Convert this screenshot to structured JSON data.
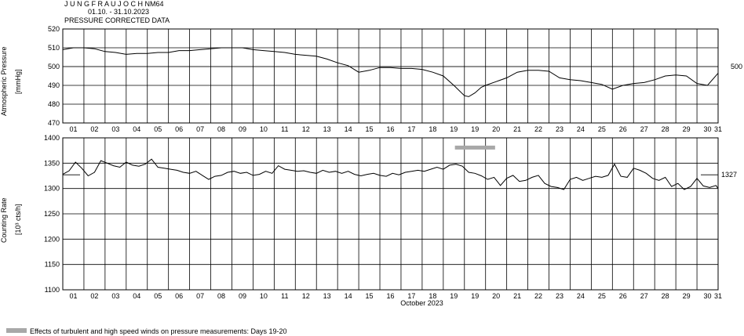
{
  "header": {
    "station": "J U N G F R A U J O C H  NM64",
    "period": "01.10. - 31.10.2023",
    "subtitle": "PRESSURE CORRECTED DATA"
  },
  "footnote": {
    "text": "Effects of turbulent and high speed winds on pressure measurements: Days 19-20",
    "swatch_color": "#a8a8a8"
  },
  "chart_data": [
    {
      "id": "pressure",
      "type": "line",
      "ylabel": "Atmospheric Pressure",
      "yunit": "[mmHg]",
      "ylim": [
        470,
        520
      ],
      "yticks": [
        470,
        480,
        490,
        500,
        510,
        520
      ],
      "ytick_labels": [
        "470",
        "480",
        "490",
        "500",
        "510",
        "520"
      ],
      "reference_value": 500,
      "reference_label": "500",
      "xlim": [
        0,
        31
      ],
      "xtick_labels": [
        "01",
        "02",
        "03",
        "04",
        "05",
        "06",
        "07",
        "08",
        "09",
        "10",
        "11",
        "12",
        "13",
        "14",
        "15",
        "16",
        "17",
        "18",
        "19",
        "19",
        "20",
        "21",
        "22",
        "23",
        "24",
        "25",
        "26",
        "27",
        "28",
        "29",
        "30",
        "31"
      ],
      "grid": true,
      "series": [
        {
          "x": [
            0,
            0.5,
            1,
            1.5,
            2,
            2.5,
            3,
            3.5,
            4,
            4.5,
            5,
            5.5,
            6,
            6.5,
            7,
            7.5,
            8,
            8.5,
            9,
            9.5,
            10,
            10.5,
            11,
            11.5,
            12,
            12.5,
            13,
            13.5,
            14,
            14.5,
            15,
            15.5,
            16,
            16.5,
            17,
            17.5,
            18,
            18.5,
            19,
            19.2,
            19.5,
            19.8,
            20,
            20.5,
            21,
            21.5,
            22,
            22.5,
            23,
            23.5,
            24,
            24.5,
            25,
            25.5,
            26,
            26.5,
            27,
            27.5,
            28,
            28.5,
            29,
            29.5,
            30,
            30.5,
            31
          ],
          "y": [
            509,
            510,
            510,
            509.5,
            508,
            507.5,
            506.5,
            507,
            507,
            507.5,
            507.5,
            508.5,
            508.5,
            509,
            509.5,
            510,
            510,
            510,
            509,
            508.5,
            508,
            507.5,
            506.5,
            506,
            505.5,
            504,
            502,
            500.5,
            497,
            498,
            499.5,
            499.5,
            499,
            499,
            498.5,
            497,
            495,
            490,
            484.5,
            484,
            486,
            489,
            490,
            492,
            494,
            497,
            498,
            498,
            497.5,
            494,
            493,
            492.5,
            491.5,
            490.5,
            488,
            490,
            491,
            491.5,
            493,
            495,
            495.5,
            495,
            491,
            490,
            496.5
          ]
        }
      ]
    },
    {
      "id": "counting",
      "type": "line",
      "ylabel": "Counting Rate",
      "yunit": "[10³ cts/h]",
      "ylim": [
        1100,
        1400
      ],
      "yticks": [
        1100,
        1150,
        1200,
        1250,
        1300,
        1350,
        1400
      ],
      "ytick_labels": [
        "1100",
        "1150",
        "1200",
        "1250",
        "1300",
        "1350",
        "1400"
      ],
      "reference_value": 1327,
      "reference_label": "1327",
      "xlim": [
        0,
        31
      ],
      "xtick_labels": [
        "01",
        "02",
        "03",
        "04",
        "05",
        "06",
        "07",
        "08",
        "09",
        "10",
        "11",
        "12",
        "13",
        "14",
        "15",
        "16",
        "17",
        "18",
        "19",
        "19",
        "20",
        "21",
        "22",
        "23",
        "24",
        "25",
        "26",
        "27",
        "28",
        "29",
        "30",
        "31"
      ],
      "xlabel": "October 2023",
      "highlight": {
        "x_start": 18.55,
        "x_end": 20.45,
        "value": 1380,
        "color": "#a8a8a8"
      },
      "grid": true,
      "series": [
        {
          "x": [
            0,
            0.3,
            0.6,
            0.9,
            1.2,
            1.5,
            1.8,
            2.1,
            2.4,
            2.7,
            3.0,
            3.3,
            3.6,
            3.9,
            4.2,
            4.5,
            4.8,
            5.1,
            5.4,
            5.7,
            6.0,
            6.3,
            6.6,
            6.9,
            7.2,
            7.5,
            7.8,
            8.1,
            8.4,
            8.7,
            9.0,
            9.3,
            9.6,
            9.9,
            10.2,
            10.5,
            10.8,
            11.1,
            11.4,
            11.7,
            12.0,
            12.3,
            12.6,
            12.9,
            13.2,
            13.5,
            13.8,
            14.1,
            14.4,
            14.7,
            15.0,
            15.3,
            15.6,
            15.9,
            16.2,
            16.5,
            16.8,
            17.1,
            17.4,
            17.7,
            18.0,
            18.3,
            18.6,
            18.9,
            19.2,
            19.5,
            19.8,
            20.1,
            20.4,
            20.7,
            21.0,
            21.3,
            21.6,
            21.9,
            22.2,
            22.5,
            22.8,
            23.1,
            23.4,
            23.7,
            24.0,
            24.3,
            24.6,
            24.9,
            25.2,
            25.5,
            25.8,
            26.1,
            26.4,
            26.7,
            27.0,
            27.3,
            27.6,
            27.9,
            28.2,
            28.5,
            28.8,
            29.1,
            29.4,
            29.7,
            30.0,
            30.3,
            30.6,
            30.9,
            31
          ],
          "y": [
            1328,
            1335,
            1352,
            1340,
            1325,
            1332,
            1355,
            1350,
            1345,
            1342,
            1352,
            1346,
            1344,
            1348,
            1358,
            1342,
            1340,
            1338,
            1336,
            1332,
            1330,
            1334,
            1326,
            1318,
            1324,
            1326,
            1332,
            1334,
            1330,
            1332,
            1326,
            1328,
            1334,
            1330,
            1345,
            1338,
            1336,
            1334,
            1335,
            1332,
            1330,
            1336,
            1332,
            1334,
            1330,
            1334,
            1328,
            1325,
            1328,
            1330,
            1326,
            1324,
            1330,
            1327,
            1332,
            1334,
            1336,
            1334,
            1338,
            1342,
            1338,
            1346,
            1348,
            1344,
            1332,
            1330,
            1325,
            1318,
            1322,
            1306,
            1320,
            1326,
            1314,
            1316,
            1322,
            1326,
            1310,
            1304,
            1302,
            1298,
            1318,
            1322,
            1316,
            1320,
            1324,
            1322,
            1326,
            1348,
            1324,
            1322,
            1340,
            1336,
            1330,
            1320,
            1316,
            1322,
            1304,
            1310,
            1298,
            1304,
            1320,
            1305,
            1302,
            1306,
            1300
          ]
        }
      ]
    }
  ]
}
